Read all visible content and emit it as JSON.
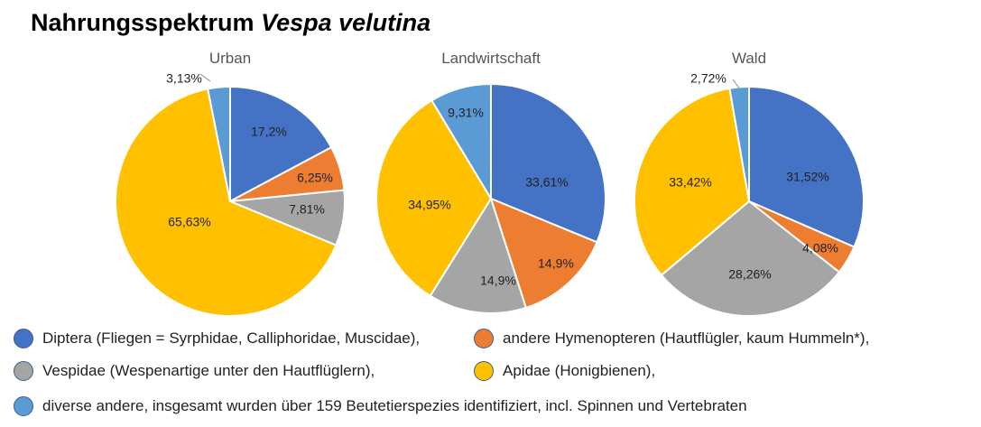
{
  "chart_data": {
    "type": "pie",
    "title": "Nahrungsspektrum",
    "title_italic": "Vespa velutina",
    "categories": [
      "Diptera (Fliegen = Syrphidae, Calliphoridae, Muscidae),",
      "andere Hymenopteren (Hautflügler, kaum Hummeln*),",
      "Vespidae (Wespenartige unter den Hautflüglern),",
      "Apidae (Honigbienen),",
      "diverse andere, insgesamt wurden über 159 Beutetierspezies identifiziert, incl. Spinnen und Vertebraten"
    ],
    "colors": [
      "#4472C4",
      "#ED7D31",
      "#A5A5A5",
      "#FFC000",
      "#5B9BD5"
    ],
    "series": [
      {
        "name": "Urban",
        "values": [
          17.2,
          6.25,
          7.81,
          65.63,
          3.13
        ],
        "labels": [
          "17,2%",
          "6,25%",
          "7,81%",
          "65,63%",
          "3,13%"
        ]
      },
      {
        "name": "Landwirtschaft",
        "values": [
          33.61,
          14.9,
          14.9,
          34.95,
          9.31
        ],
        "labels": [
          "33,61%",
          "14,9%",
          "14,9%",
          "34,95%",
          "9,31%"
        ]
      },
      {
        "name": "Wald",
        "values": [
          31.52,
          4.08,
          28.26,
          33.42,
          2.72
        ],
        "labels": [
          "31,52%",
          "4,08%",
          "28,26%",
          "33,42%",
          "2,72%"
        ]
      }
    ],
    "legend_position": "bottom"
  }
}
